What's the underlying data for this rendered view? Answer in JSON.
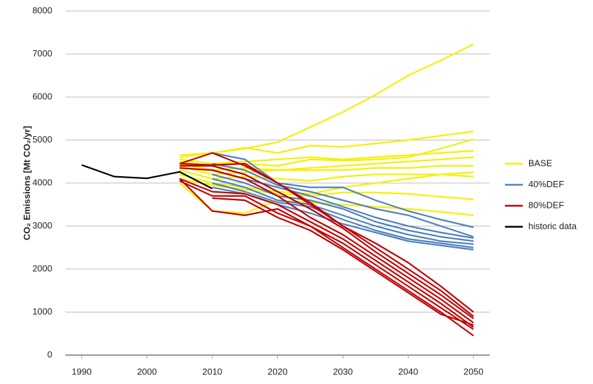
{
  "chart_data": {
    "type": "line",
    "y_label": "CO₂ Emissions [Mt CO₂/yr]",
    "x": [
      1990,
      1995,
      2000,
      2005,
      2010,
      2015,
      2020,
      2025,
      2030,
      2035,
      2040,
      2045,
      2050
    ],
    "xlim": [
      1987.5,
      2052.5
    ],
    "xticks": [
      1990,
      2000,
      2010,
      2020,
      2030,
      2040,
      2050
    ],
    "ylim": [
      0,
      8000
    ],
    "yticks": [
      0,
      1000,
      2000,
      3000,
      4000,
      5000,
      6000,
      7000,
      8000
    ],
    "grid": true,
    "legend": "right",
    "series": [
      {
        "name": "BASE",
        "color": "#f5f000",
        "lines": [
          [
            null,
            null,
            null,
            4650,
            4700,
            4800,
            4950,
            5300,
            5650,
            6050,
            6500,
            6850,
            7230
          ],
          [
            null,
            null,
            null,
            4600,
            4700,
            4820,
            4700,
            4870,
            4840,
            4920,
            5000,
            5100,
            5200
          ],
          [
            null,
            null,
            null,
            4550,
            4450,
            4500,
            4550,
            4600,
            4550,
            4600,
            4650,
            4700,
            4750
          ],
          [
            null,
            null,
            null,
            4500,
            4400,
            4450,
            4400,
            4550,
            4520,
            4550,
            4600,
            4800,
            5020
          ],
          [
            null,
            null,
            null,
            4450,
            4300,
            4350,
            4300,
            4350,
            4400,
            4450,
            4500,
            4550,
            4600
          ],
          [
            null,
            null,
            null,
            4400,
            4200,
            4250,
            4300,
            4300,
            4300,
            4350,
            4350,
            4400,
            4400
          ],
          [
            null,
            null,
            null,
            4300,
            4100,
            4150,
            4100,
            4050,
            4150,
            4200,
            4200,
            4200,
            4150
          ],
          [
            null,
            null,
            null,
            4200,
            4000,
            3900,
            3800,
            3750,
            3900,
            4000,
            4100,
            4200,
            4250
          ],
          [
            null,
            null,
            null,
            4100,
            3950,
            3850,
            3750,
            3700,
            3780,
            3780,
            3750,
            3680,
            3620
          ],
          [
            null,
            null,
            null,
            4000,
            3350,
            3300,
            3600,
            3550,
            3500,
            3450,
            3400,
            3330,
            3250
          ]
        ]
      },
      {
        "name": "40%DEF",
        "color": "#4f81bd",
        "lines": [
          [
            null,
            null,
            null,
            null,
            4700,
            4550,
            4000,
            3900,
            3900,
            3600,
            3350,
            3150,
            2970
          ],
          [
            null,
            null,
            null,
            null,
            4450,
            4300,
            3950,
            3800,
            3600,
            3400,
            3250,
            3000,
            2750
          ],
          [
            null,
            null,
            null,
            null,
            4300,
            4100,
            3900,
            3700,
            3450,
            3200,
            3000,
            2850,
            2720
          ],
          [
            null,
            null,
            null,
            null,
            4200,
            4000,
            3700,
            3600,
            3400,
            3100,
            2900,
            2750,
            2650
          ],
          [
            null,
            null,
            null,
            null,
            4100,
            3900,
            3600,
            3500,
            3250,
            3000,
            2800,
            2650,
            2580
          ],
          [
            null,
            null,
            null,
            null,
            4000,
            3800,
            3550,
            3450,
            3150,
            2900,
            2700,
            2600,
            2500
          ],
          [
            null,
            null,
            null,
            null,
            3900,
            3750,
            3500,
            3300,
            3050,
            2850,
            2650,
            2550,
            2450
          ]
        ]
      },
      {
        "name": "80%DEF",
        "color": "#c00000",
        "lines": [
          [
            null,
            null,
            null,
            4450,
            4420,
            4450,
            4000,
            3550,
            3000,
            2600,
            2150,
            1600,
            1000
          ],
          [
            null,
            null,
            null,
            4450,
            4700,
            4400,
            4000,
            3500,
            3000,
            2500,
            2000,
            1500,
            900
          ],
          [
            null,
            null,
            null,
            4400,
            4400,
            4200,
            3800,
            3400,
            2950,
            2400,
            1900,
            1400,
            850
          ],
          [
            null,
            null,
            null,
            4350,
            4300,
            4100,
            3700,
            3200,
            2800,
            2300,
            1800,
            1300,
            750
          ],
          [
            null,
            null,
            null,
            4100,
            3800,
            3750,
            3500,
            3100,
            2700,
            2200,
            1700,
            1200,
            650
          ],
          [
            null,
            null,
            null,
            4050,
            3700,
            3700,
            3300,
            3000,
            2600,
            2100,
            1600,
            1100,
            600
          ],
          [
            null,
            null,
            null,
            4100,
            3350,
            3250,
            3400,
            3000,
            2500,
            2000,
            1500,
            1000,
            450
          ],
          [
            null,
            null,
            null,
            null,
            3650,
            3600,
            3200,
            2900,
            2450,
            1950,
            1450,
            950,
            700
          ]
        ]
      },
      {
        "name": "historic data",
        "color": "#000000",
        "lines": [
          [
            4420,
            4150,
            4110,
            4260,
            3870,
            null,
            null,
            null,
            null,
            null,
            null,
            null,
            null
          ]
        ]
      }
    ]
  }
}
